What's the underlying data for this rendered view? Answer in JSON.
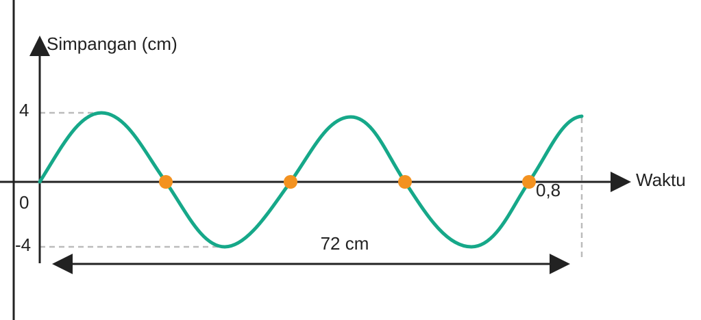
{
  "axes": {
    "y_label": "Simpangan (cm)",
    "x_label": "Waktu"
  },
  "ticks": {
    "top": "4",
    "origin": "0",
    "bottom": "-4",
    "end_time": "0,8"
  },
  "annotation": "72 cm"
}
